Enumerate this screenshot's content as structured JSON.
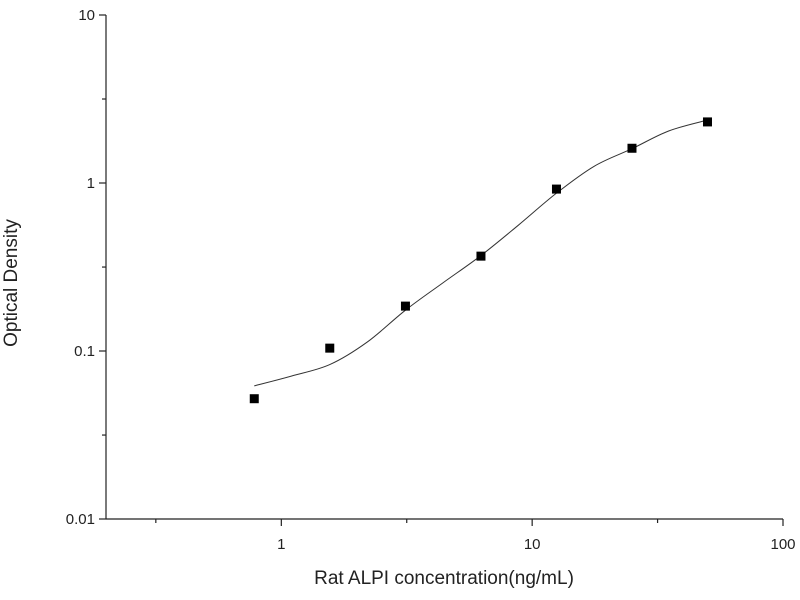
{
  "chart_data": {
    "type": "scatter",
    "x_label": "Rat ALPI concentration(ng/mL)",
    "y_label": "Optical Density",
    "x_log": true,
    "y_log": true,
    "xlim": [
      0.2,
      100
    ],
    "ylim": [
      0.01,
      10
    ],
    "xticks": [
      1,
      10,
      100
    ],
    "yticks": [
      0.01,
      0.1,
      1,
      10
    ],
    "x_minor_ticks": [
      0.316,
      3.162,
      31.62
    ],
    "y_minor_ticks": [
      0.0316,
      0.316,
      3.162
    ],
    "series": [
      {
        "type": "scatter",
        "color": "#000000",
        "x": [
          0.78,
          1.56,
          3.125,
          6.25,
          12.5,
          25,
          50
        ],
        "values": [
          0.052,
          0.104,
          0.185,
          0.367,
          0.92,
          1.61,
          2.31
        ]
      },
      {
        "type": "line",
        "color": "#333333",
        "x": [
          0.78,
          1.1,
          1.56,
          2.2,
          3.125,
          4.4,
          6.25,
          8.8,
          12.5,
          17.7,
          25,
          35,
          50
        ],
        "values": [
          0.062,
          0.071,
          0.083,
          0.113,
          0.175,
          0.254,
          0.37,
          0.56,
          0.87,
          1.26,
          1.6,
          2.04,
          2.37
        ]
      }
    ]
  }
}
